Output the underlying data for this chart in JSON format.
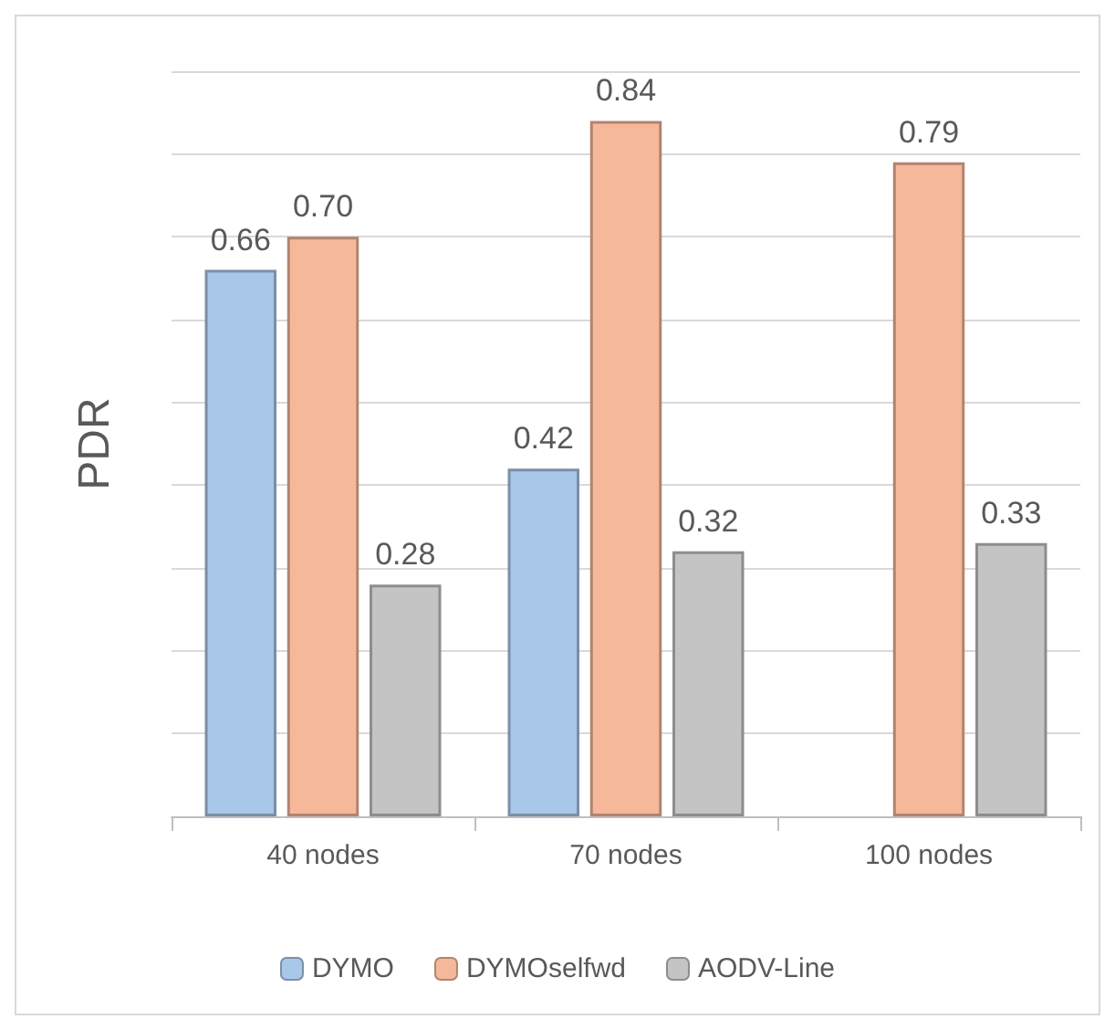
{
  "chart_data": {
    "type": "bar",
    "ylabel": "PDR",
    "categories": [
      "40 nodes",
      "70 nodes",
      "100 nodes"
    ],
    "series": [
      {
        "name": "DYMO",
        "color": "#a9c7e8",
        "values": [
          0.66,
          0.42,
          null
        ],
        "value_labels": [
          "0.66",
          "0.42",
          null
        ]
      },
      {
        "name": "DYMOselfwd",
        "color": "#f6b89a",
        "values": [
          0.7,
          0.84,
          0.79
        ],
        "value_labels": [
          "0.70",
          "0.84",
          "0.79"
        ]
      },
      {
        "name": "AODV-Line",
        "color": "#c4c4c4",
        "values": [
          0.28,
          0.32,
          0.33
        ],
        "value_labels": [
          "0.28",
          "0.32",
          "0.33"
        ]
      }
    ],
    "ylim": [
      0,
      0.9
    ],
    "yticks": [
      {
        "value": 0,
        "label": null
      },
      {
        "value": 0.1,
        "label": null
      },
      {
        "value": 0.2,
        "label": null
      },
      {
        "value": 0.3,
        "label": null
      },
      {
        "value": 0.4,
        "label": null
      },
      {
        "value": 0.5,
        "label": null
      },
      {
        "value": 0.6,
        "label": null
      },
      {
        "value": 0.7,
        "label": null
      },
      {
        "value": 0.8,
        "label": null
      },
      {
        "value": 0.9,
        "label": null
      }
    ],
    "tick_labels": "x",
    "grid": "y",
    "legend": "bottom"
  }
}
